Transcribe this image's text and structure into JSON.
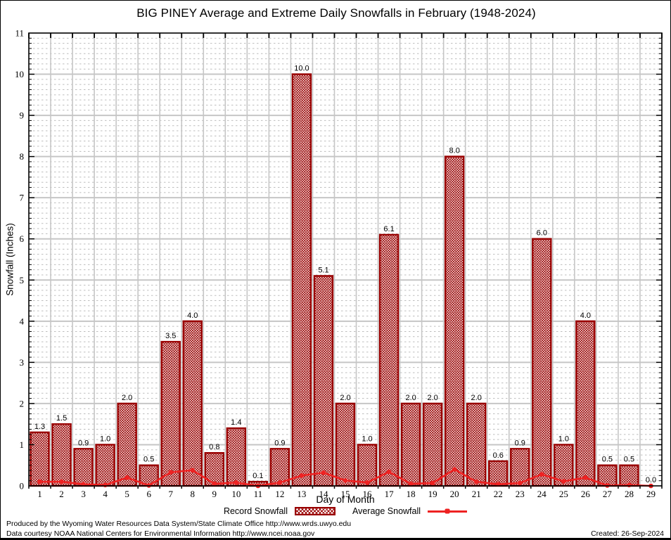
{
  "chart_data": {
    "type": "bar",
    "title": "BIG PINEY Average and Extreme Daily Snowfalls in February (1948-2024)",
    "xlabel": "Day of Month",
    "ylabel": "Snowfall (Inches)",
    "ylim": [
      0,
      11
    ],
    "y_tick_step": 1,
    "y_minor_step": 0.125,
    "grid": true,
    "legend_position": "bottom",
    "categories": [
      "1",
      "2",
      "3",
      "4",
      "5",
      "6",
      "7",
      "8",
      "9",
      "10",
      "11",
      "12",
      "13",
      "14",
      "15",
      "16",
      "17",
      "18",
      "19",
      "20",
      "21",
      "22",
      "23",
      "24",
      "25",
      "26",
      "27",
      "28",
      "29"
    ],
    "series": [
      {
        "name": "Record Snowfall",
        "type": "bar",
        "color": "#990000",
        "values": [
          1.3,
          1.5,
          0.9,
          1.0,
          2.0,
          0.5,
          3.5,
          4.0,
          0.8,
          1.4,
          0.1,
          0.9,
          10.0,
          5.1,
          2.0,
          1.0,
          6.1,
          2.0,
          2.0,
          8.0,
          2.0,
          0.6,
          0.9,
          6.0,
          1.0,
          4.0,
          0.5,
          0.5,
          0.0
        ],
        "value_labels": [
          "1.3",
          "1.5",
          "0.9",
          "1.0",
          "2.0",
          "0.5",
          "3.5",
          "4.0",
          "0.8",
          "1.4",
          "0.1",
          "0.9",
          "10.0",
          "5.1",
          "2.0",
          "1.0",
          "6.1",
          "2.0",
          "2.0",
          "8.0",
          "2.0",
          "0.6",
          "0.9",
          "6.0",
          "1.0",
          "4.0",
          "0.5",
          "0.5",
          "0.0"
        ]
      },
      {
        "name": "Average Snowfall",
        "type": "line",
        "color": "#ee2222",
        "values": [
          0.1,
          0.1,
          0.04,
          0.02,
          0.2,
          0.01,
          0.33,
          0.38,
          0.05,
          0.08,
          0.0,
          0.08,
          0.25,
          0.32,
          0.13,
          0.08,
          0.34,
          0.05,
          0.07,
          0.4,
          0.1,
          0.04,
          0.07,
          0.28,
          0.11,
          0.2,
          0.01,
          0.02,
          0.0
        ]
      }
    ]
  },
  "colors": {
    "bar_outline": "#990000",
    "bar_hatch": "#990000",
    "line": "#ee2222",
    "grid_major": "#c6c6c6",
    "grid_minor": "#bdbdbd",
    "frame": "#000000",
    "background": "#ffffff",
    "text": "#000000"
  },
  "footer": {
    "line1": "Produced by the Wyoming Water Resources Data System/State Climate Office http://www.wrds.uwyo.edu",
    "line2": "Data courtesy NOAA National Centers for Environmental Information http://www.ncei.noaa.gov",
    "created": "Created: 26-Sep-2024"
  }
}
